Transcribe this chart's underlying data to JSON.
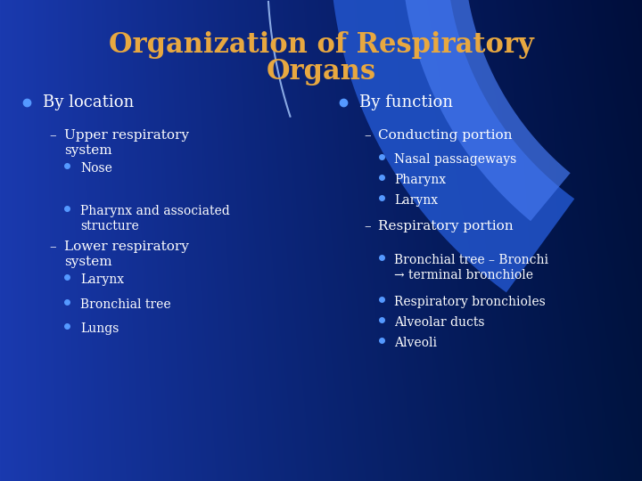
{
  "title_line1": "Organization of Respiratory",
  "title_line2": "Organs",
  "title_color": "#E8A840",
  "bg_color_left": "#1a3aaf",
  "bg_color_right": "#000820",
  "text_color": "#ffffff",
  "bullet_color": "#5599ff",
  "swoosh_color1": "#3366dd",
  "swoosh_color2": "#1144bb",
  "left_col": {
    "header": "By location",
    "items": [
      {
        "level": 1,
        "text": "Upper respiratory\nsystem"
      },
      {
        "level": 2,
        "text": "Nose"
      },
      {
        "level": 2,
        "text": "Pharynx and associated\nstructure"
      },
      {
        "level": 1,
        "text": "Lower respiratory\nsystem"
      },
      {
        "level": 2,
        "text": "Larynx"
      },
      {
        "level": 2,
        "text": "Bronchial tree"
      },
      {
        "level": 2,
        "text": "Lungs"
      }
    ]
  },
  "right_col": {
    "header": "By function",
    "items": [
      {
        "level": 1,
        "text": "Conducting portion"
      },
      {
        "level": 2,
        "text": "Nasal passageways"
      },
      {
        "level": 2,
        "text": "Pharynx"
      },
      {
        "level": 2,
        "text": "Larynx"
      },
      {
        "level": 1,
        "text": "Respiratory portion"
      },
      {
        "level": 2,
        "text": "Bronchial tree – Bronchi\n→ terminal bronchiole"
      },
      {
        "level": 2,
        "text": "Respiratory bronchioles"
      },
      {
        "level": 2,
        "text": "Alveolar ducts"
      },
      {
        "level": 2,
        "text": "Alveoli"
      }
    ]
  }
}
